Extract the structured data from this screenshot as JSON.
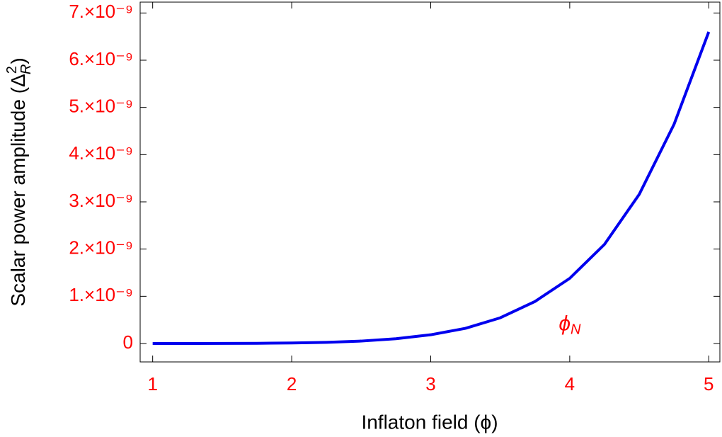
{
  "chart_data": {
    "type": "line",
    "xlabel": "Inflaton field (ϕ)",
    "ylabel": {
      "text": "Scalar power amplitude (Δ",
      "sup": "2",
      "sub": "R",
      "end": ")"
    },
    "x": [
      1,
      1.25,
      1.5,
      1.75,
      2,
      2.25,
      2.5,
      2.75,
      3,
      3.25,
      3.5,
      3.75,
      4,
      4.25,
      4.5,
      4.75,
      5
    ],
    "values": [
      8.4e-14,
      4e-13,
      1.44e-12,
      4.25e-12,
      1.08e-11,
      2.47e-11,
      5.16e-11,
      1.01e-10,
      1.85e-10,
      3.22e-10,
      5.44e-10,
      8.9e-10,
      1.38e-09,
      2.1e-09,
      3.16e-09,
      4.64e-09,
      6.6e-09
    ],
    "color": "#0000ee",
    "xlim": [
      0.91,
      5.08
    ],
    "ylim": [
      -3.9e-10,
      7.23e-09
    ],
    "xticks": [
      1,
      2,
      3,
      4,
      5
    ],
    "yticks": [
      0,
      {
        "value": 1e-09,
        "label": "1.×10⁻⁹"
      },
      {
        "value": 2e-09,
        "label": "2.×10⁻⁹"
      },
      {
        "value": 3e-09,
        "label": "3.×10⁻⁹"
      },
      {
        "value": 4e-09,
        "label": "4.×10⁻⁹"
      },
      {
        "value": 5e-09,
        "label": "5.×10⁻⁹"
      },
      {
        "value": 6e-09,
        "label": "6.×10⁻⁹"
      },
      {
        "value": 7e-09,
        "label": "7.×10⁻⁹"
      }
    ],
    "tick_color": "#ff0000",
    "annotations": [
      {
        "text": "ϕ",
        "sub": "N",
        "x": 4,
        "y": 4e-10,
        "color": "#ff0000"
      }
    ]
  }
}
